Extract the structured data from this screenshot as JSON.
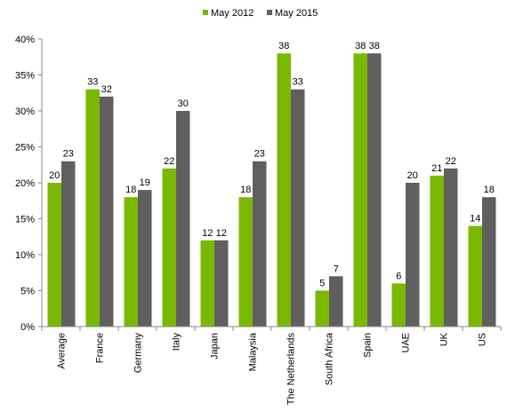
{
  "chart_data": {
    "type": "bar",
    "categories": [
      "Average",
      "France",
      "Germany",
      "Italy",
      "Japan",
      "Malaysia",
      "The Netherlands",
      "South Africa",
      "Spain",
      "UAE",
      "UK",
      "US"
    ],
    "series": [
      {
        "name": "May 2012",
        "color": "#7ab800",
        "values": [
          20,
          33,
          18,
          22,
          12,
          18,
          38,
          5,
          38,
          6,
          21,
          14
        ]
      },
      {
        "name": "May 2015",
        "color": "#5f5f5f",
        "values": [
          23,
          32,
          19,
          30,
          12,
          23,
          33,
          7,
          38,
          20,
          22,
          18
        ]
      }
    ],
    "yticks": [
      "0%",
      "5%",
      "10%",
      "15%",
      "20%",
      "25%",
      "30%",
      "35%",
      "40%"
    ],
    "ylim": [
      0,
      40
    ],
    "grid": false,
    "legend_position": "top-center",
    "title": "",
    "xlabel": "",
    "ylabel": ""
  }
}
